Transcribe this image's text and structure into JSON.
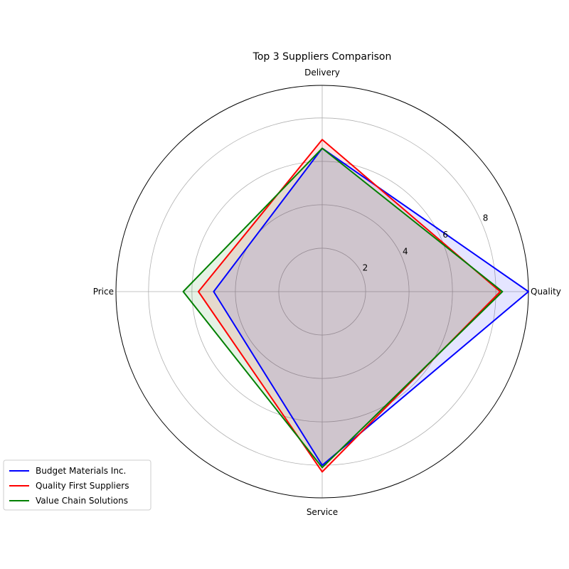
{
  "chart_data": {
    "type": "radar",
    "title": "Top 3 Suppliers Comparison",
    "categories": [
      "Quality",
      "Delivery",
      "Price",
      "Service"
    ],
    "rlim": [
      0,
      9.5
    ],
    "r_ticks": [
      2,
      4,
      6,
      8
    ],
    "grid": true,
    "legend_position": "bottom-left",
    "series": [
      {
        "name": "Budget Materials Inc.",
        "color": "#0000ff",
        "values": [
          9.5,
          6.6,
          5.0,
          8.0
        ]
      },
      {
        "name": "Quality First Suppliers",
        "color": "#ff0000",
        "values": [
          8.2,
          7.0,
          5.7,
          8.3
        ]
      },
      {
        "name": "Value Chain Solutions",
        "color": "#008000",
        "values": [
          8.3,
          6.6,
          6.4,
          8.1
        ]
      }
    ]
  }
}
